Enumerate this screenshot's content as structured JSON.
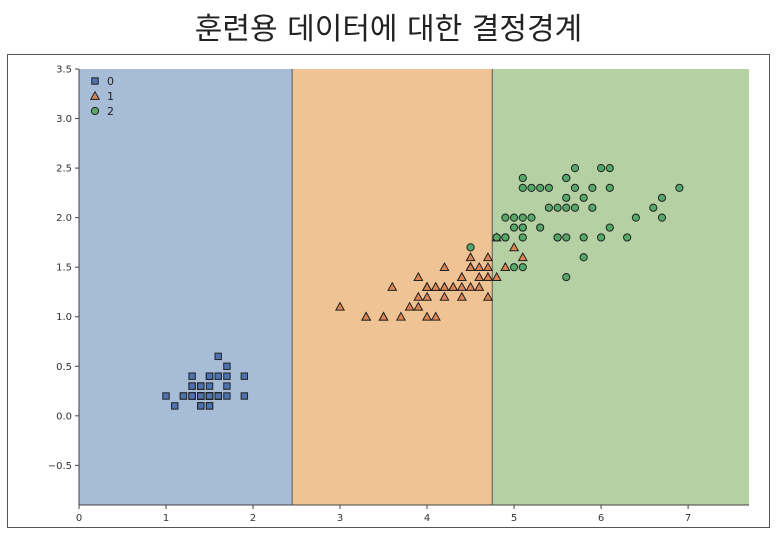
{
  "page": {
    "title": "훈련용 데이터에 대한 결정경계"
  },
  "chart_data": {
    "type": "scatter",
    "title": "훈련용 데이터에 대한 결정경계",
    "xlabel": "",
    "ylabel": "",
    "xlim": [
      0,
      7.7
    ],
    "ylim": [
      -0.9,
      3.5
    ],
    "xticks": [
      0,
      1,
      2,
      3,
      4,
      5,
      6,
      7
    ],
    "yticks": [
      -0.5,
      0.0,
      0.5,
      1.0,
      1.5,
      2.0,
      2.5,
      3.0,
      3.5
    ],
    "xtick_labels": [
      "0",
      "1",
      "2",
      "3",
      "4",
      "5",
      "6",
      "7"
    ],
    "ytick_labels": [
      "−0.5",
      "0.0",
      "0.5",
      "1.0",
      "1.5",
      "2.0",
      "2.5",
      "3.0",
      "3.5"
    ],
    "grid": false,
    "legend_position": "top-left",
    "regions": [
      {
        "class": "0",
        "x_from": 0,
        "x_to": 2.45,
        "color": "#a7bcd6"
      },
      {
        "class": "1",
        "x_from": 2.45,
        "x_to": 4.75,
        "color": "#f0c395"
      },
      {
        "class": "2",
        "x_from": 4.75,
        "x_to": 7.7,
        "color": "#b5d1a3"
      }
    ],
    "series": [
      {
        "name": "0",
        "marker": "square",
        "color": "#4c72b0",
        "points": [
          [
            1.4,
            0.2
          ],
          [
            1.4,
            0.2
          ],
          [
            1.3,
            0.2
          ],
          [
            1.5,
            0.2
          ],
          [
            1.4,
            0.2
          ],
          [
            1.7,
            0.4
          ],
          [
            1.4,
            0.3
          ],
          [
            1.5,
            0.2
          ],
          [
            1.4,
            0.2
          ],
          [
            1.5,
            0.1
          ],
          [
            1.5,
            0.2
          ],
          [
            1.6,
            0.2
          ],
          [
            1.4,
            0.1
          ],
          [
            1.1,
            0.1
          ],
          [
            1.2,
            0.2
          ],
          [
            1.5,
            0.4
          ],
          [
            1.3,
            0.4
          ],
          [
            1.4,
            0.3
          ],
          [
            1.7,
            0.3
          ],
          [
            1.5,
            0.3
          ],
          [
            1.7,
            0.2
          ],
          [
            1.5,
            0.4
          ],
          [
            1.0,
            0.2
          ],
          [
            1.7,
            0.5
          ],
          [
            1.9,
            0.2
          ],
          [
            1.6,
            0.2
          ],
          [
            1.6,
            0.4
          ],
          [
            1.5,
            0.2
          ],
          [
            1.4,
            0.2
          ],
          [
            1.6,
            0.2
          ],
          [
            1.6,
            0.2
          ],
          [
            1.5,
            0.4
          ],
          [
            1.5,
            0.1
          ],
          [
            1.4,
            0.2
          ],
          [
            1.5,
            0.2
          ],
          [
            1.2,
            0.2
          ],
          [
            1.3,
            0.2
          ],
          [
            1.4,
            0.1
          ],
          [
            1.3,
            0.2
          ],
          [
            1.5,
            0.2
          ],
          [
            1.3,
            0.3
          ],
          [
            1.3,
            0.3
          ],
          [
            1.3,
            0.2
          ],
          [
            1.6,
            0.6
          ],
          [
            1.9,
            0.4
          ],
          [
            1.4,
            0.3
          ],
          [
            1.6,
            0.2
          ],
          [
            1.4,
            0.2
          ],
          [
            1.5,
            0.2
          ],
          [
            1.4,
            0.2
          ]
        ]
      },
      {
        "name": "1",
        "marker": "triangle",
        "color": "#dd8452",
        "points": [
          [
            4.7,
            1.4
          ],
          [
            4.5,
            1.5
          ],
          [
            4.9,
            1.5
          ],
          [
            4.0,
            1.3
          ],
          [
            4.6,
            1.5
          ],
          [
            4.5,
            1.3
          ],
          [
            4.7,
            1.6
          ],
          [
            3.3,
            1.0
          ],
          [
            4.6,
            1.3
          ],
          [
            3.9,
            1.4
          ],
          [
            3.5,
            1.0
          ],
          [
            4.2,
            1.5
          ],
          [
            4.0,
            1.0
          ],
          [
            4.7,
            1.4
          ],
          [
            3.6,
            1.3
          ],
          [
            4.4,
            1.4
          ],
          [
            4.5,
            1.5
          ],
          [
            4.1,
            1.0
          ],
          [
            4.5,
            1.5
          ],
          [
            3.9,
            1.1
          ],
          [
            4.8,
            1.8
          ],
          [
            4.0,
            1.3
          ],
          [
            4.9,
            1.5
          ],
          [
            4.7,
            1.2
          ],
          [
            4.3,
            1.3
          ],
          [
            4.4,
            1.4
          ],
          [
            4.8,
            1.4
          ],
          [
            5.0,
            1.7
          ],
          [
            4.5,
            1.5
          ],
          [
            3.5,
            1.0
          ],
          [
            3.8,
            1.1
          ],
          [
            3.7,
            1.0
          ],
          [
            3.9,
            1.2
          ],
          [
            5.1,
            1.6
          ],
          [
            4.5,
            1.5
          ],
          [
            4.5,
            1.6
          ],
          [
            4.7,
            1.5
          ],
          [
            4.4,
            1.3
          ],
          [
            4.1,
            1.3
          ],
          [
            4.0,
            1.3
          ],
          [
            4.4,
            1.2
          ],
          [
            4.6,
            1.4
          ],
          [
            4.0,
            1.2
          ],
          [
            3.3,
            1.0
          ],
          [
            4.2,
            1.3
          ],
          [
            4.2,
            1.2
          ],
          [
            4.2,
            1.3
          ],
          [
            4.3,
            1.3
          ],
          [
            3.0,
            1.1
          ],
          [
            4.1,
            1.3
          ]
        ]
      },
      {
        "name": "2",
        "marker": "circle",
        "color": "#55a868",
        "points": [
          [
            6.0,
            2.5
          ],
          [
            5.1,
            1.9
          ],
          [
            5.9,
            2.1
          ],
          [
            5.6,
            1.8
          ],
          [
            5.8,
            2.2
          ],
          [
            6.6,
            2.1
          ],
          [
            4.5,
            1.7
          ],
          [
            6.3,
            1.8
          ],
          [
            5.8,
            1.8
          ],
          [
            6.1,
            2.5
          ],
          [
            5.1,
            2.0
          ],
          [
            5.3,
            1.9
          ],
          [
            5.5,
            2.1
          ],
          [
            5.0,
            2.0
          ],
          [
            5.1,
            2.4
          ],
          [
            5.3,
            2.3
          ],
          [
            5.5,
            1.8
          ],
          [
            6.7,
            2.2
          ],
          [
            6.9,
            2.3
          ],
          [
            5.0,
            1.5
          ],
          [
            5.7,
            2.3
          ],
          [
            4.9,
            2.0
          ],
          [
            6.7,
            2.0
          ],
          [
            4.9,
            1.8
          ],
          [
            5.7,
            2.1
          ],
          [
            6.0,
            1.8
          ],
          [
            4.8,
            1.8
          ],
          [
            4.9,
            1.8
          ],
          [
            5.6,
            2.1
          ],
          [
            5.8,
            1.6
          ],
          [
            6.1,
            1.9
          ],
          [
            6.4,
            2.0
          ],
          [
            5.6,
            2.2
          ],
          [
            5.1,
            1.5
          ],
          [
            5.6,
            1.4
          ],
          [
            6.1,
            2.3
          ],
          [
            5.6,
            2.4
          ],
          [
            5.5,
            1.8
          ],
          [
            4.8,
            1.8
          ],
          [
            5.4,
            2.1
          ],
          [
            5.6,
            2.4
          ],
          [
            5.1,
            2.3
          ],
          [
            5.1,
            1.9
          ],
          [
            5.9,
            2.3
          ],
          [
            5.7,
            2.5
          ],
          [
            5.2,
            2.3
          ],
          [
            5.0,
            1.9
          ],
          [
            5.2,
            2.0
          ],
          [
            5.4,
            2.3
          ],
          [
            5.1,
            1.8
          ]
        ]
      }
    ]
  }
}
